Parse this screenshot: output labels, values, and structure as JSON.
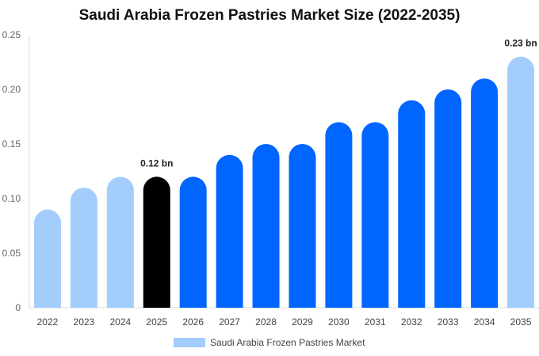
{
  "chart_data": {
    "type": "bar",
    "title": "Saudi Arabia Frozen Pastries Market Size (2022-2035)",
    "xlabel": "",
    "ylabel": "",
    "categories": [
      "2022",
      "2023",
      "2024",
      "2025",
      "2026",
      "2027",
      "2028",
      "2029",
      "2030",
      "2031",
      "2032",
      "2033",
      "2034",
      "2035"
    ],
    "series": [
      {
        "name": "Saudi Arabia Frozen Pastries Market",
        "values": [
          0.09,
          0.11,
          0.12,
          0.12,
          0.12,
          0.14,
          0.15,
          0.15,
          0.17,
          0.17,
          0.19,
          0.2,
          0.21,
          0.23
        ]
      }
    ],
    "ylim": [
      0,
      0.25
    ],
    "yticks": [
      {
        "value": 0,
        "label": "0"
      },
      {
        "value": 0.05,
        "label": "0.05"
      },
      {
        "value": 0.1,
        "label": "0.10"
      },
      {
        "value": 0.15,
        "label": "0.15"
      },
      {
        "value": 0.2,
        "label": "0.20"
      },
      {
        "value": 0.25,
        "label": "0.25"
      }
    ],
    "bar_colors": [
      "#a3cdfd",
      "#a3cdfd",
      "#a3cdfd",
      "#000000",
      "#0066ff",
      "#0066ff",
      "#0066ff",
      "#0066ff",
      "#0066ff",
      "#0066ff",
      "#0066ff",
      "#0066ff",
      "#0066ff",
      "#a3cdfd"
    ],
    "data_labels": [
      {
        "index": 3,
        "text": "0.12 bn"
      },
      {
        "index": 13,
        "text": "0.23 bn"
      }
    ],
    "grid": false,
    "legend_position": "bottom-center",
    "legend_color": "#a3cdfd"
  }
}
